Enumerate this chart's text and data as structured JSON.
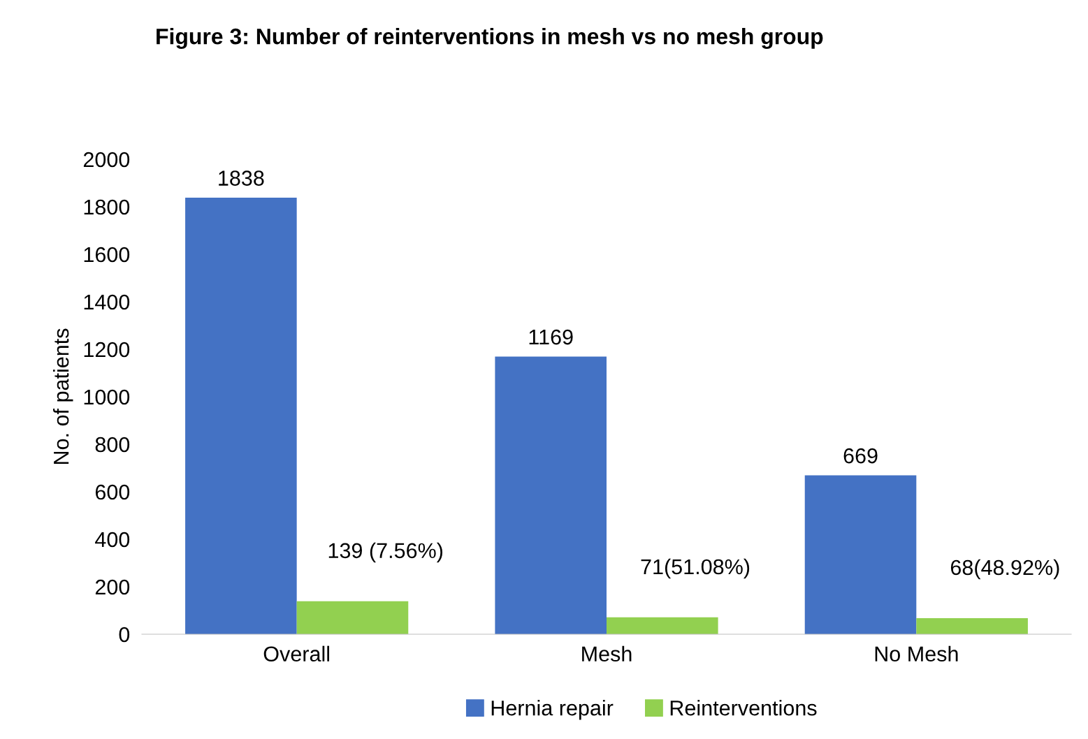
{
  "chart_data": {
    "type": "bar",
    "title": "Figure 3: Number of reinterventions in mesh vs no mesh group",
    "ylabel": "No. of patients",
    "categories": [
      "Overall",
      "Mesh",
      "No Mesh"
    ],
    "series": [
      {
        "name": "Hernia repair",
        "color": "#4472c4",
        "values": [
          1838,
          1169,
          669
        ],
        "value_labels": [
          "1838",
          "1169",
          "669"
        ]
      },
      {
        "name": "Reinterventions",
        "color": "#92d050",
        "values": [
          139,
          71,
          68
        ],
        "value_labels": [
          "139 (7.56%)",
          "71(51.08%)",
          "68(48.92%)"
        ]
      }
    ],
    "ylim": [
      0,
      2000
    ],
    "yticks": [
      0,
      200,
      400,
      600,
      800,
      1000,
      1200,
      1400,
      1600,
      1800,
      2000
    ],
    "grid": false,
    "legend": "bottom"
  }
}
